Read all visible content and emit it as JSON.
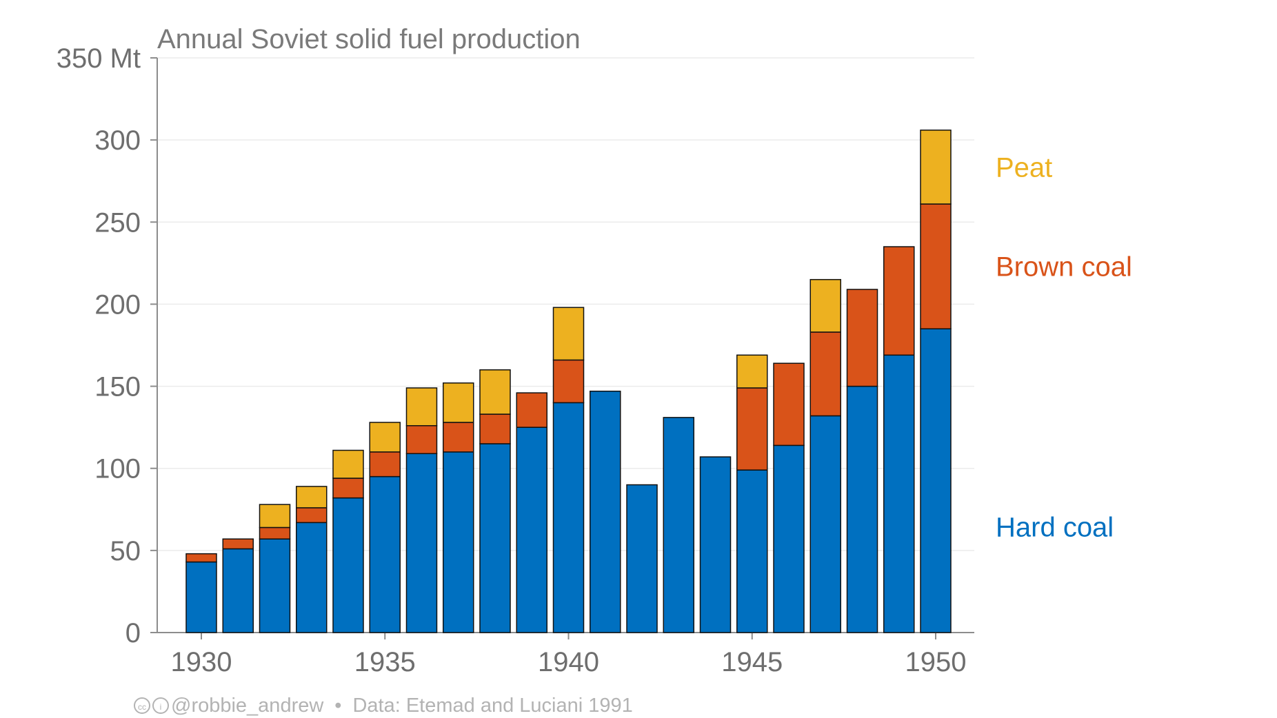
{
  "chart_data": {
    "type": "bar",
    "stacked": true,
    "title": "Annual Soviet solid fuel production",
    "x": [
      1930,
      1931,
      1932,
      1933,
      1934,
      1935,
      1936,
      1937,
      1938,
      1939,
      1940,
      1941,
      1942,
      1943,
      1944,
      1945,
      1946,
      1947,
      1948,
      1949,
      1950
    ],
    "xticks": [
      1930,
      1935,
      1940,
      1945,
      1950
    ],
    "yticks": [
      {
        "value": 0,
        "label": "0"
      },
      {
        "value": 50,
        "label": "50"
      },
      {
        "value": 100,
        "label": "100"
      },
      {
        "value": 150,
        "label": "150"
      },
      {
        "value": 200,
        "label": "200"
      },
      {
        "value": 250,
        "label": "250"
      },
      {
        "value": 300,
        "label": "300"
      },
      {
        "value": 350,
        "label": "350 Mt"
      }
    ],
    "ylim": [
      0,
      350
    ],
    "grid": true,
    "legend_position": "right, inline labels",
    "series": [
      {
        "name": "Hard coal",
        "color": "#0070c0",
        "values": [
          43,
          51,
          57,
          67,
          82,
          95,
          109,
          110,
          115,
          125,
          140,
          147,
          90,
          131,
          107,
          99,
          114,
          132,
          150,
          169,
          185
        ]
      },
      {
        "name": "Brown coal",
        "color": "#d95319",
        "values": [
          5,
          6,
          7,
          9,
          12,
          15,
          17,
          18,
          18,
          21,
          26,
          0,
          0,
          0,
          0,
          50,
          50,
          51,
          59,
          66,
          76
        ]
      },
      {
        "name": "Peat",
        "color": "#edb120",
        "values": [
          0,
          0,
          14,
          13,
          17,
          18,
          23,
          24,
          27,
          0,
          32,
          0,
          0,
          0,
          0,
          20,
          0,
          32,
          0,
          0,
          45
        ]
      }
    ]
  },
  "footer": {
    "author": "@robbie_andrew",
    "separator": "•",
    "source": "Data: Etemad and Luciani 1991"
  }
}
